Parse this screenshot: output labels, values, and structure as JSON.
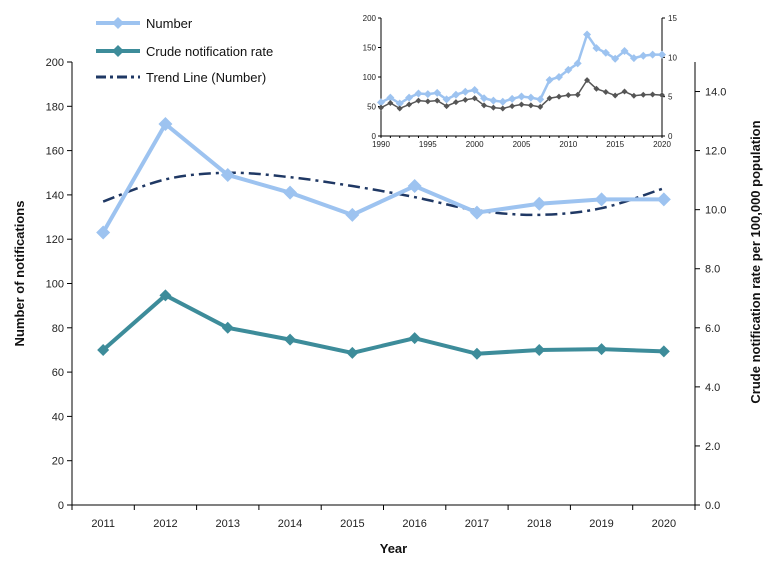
{
  "chart_data": [
    {
      "type": "line",
      "title": "",
      "xlabel": "Year",
      "ylabel": "Number of notifications",
      "y2label": "Crude notification rate per 100,000 population",
      "categories": [
        "2011",
        "2012",
        "2013",
        "2014",
        "2015",
        "2016",
        "2017",
        "2018",
        "2019",
        "2020"
      ],
      "ylim": [
        0,
        200
      ],
      "y_ticks": [
        "0",
        "20",
        "40",
        "60",
        "80",
        "100",
        "120",
        "140",
        "160",
        "180",
        "200"
      ],
      "y2lim": [
        0,
        15
      ],
      "y2_ticks": [
        "0.0",
        "2.0",
        "4.0",
        "6.0",
        "8.0",
        "10.0",
        "12.0",
        "14.0"
      ],
      "grid": false,
      "legend_position": "top-left",
      "series": [
        {
          "name": "Number",
          "axis": "left",
          "color": "#9dc3f0",
          "values": [
            123,
            172,
            149,
            141,
            131,
            144,
            132,
            136,
            138,
            138
          ]
        },
        {
          "name": "Crude notification rate",
          "axis": "right",
          "color": "#3d8c9a",
          "values": [
            5.25,
            7.1,
            6.0,
            5.6,
            5.15,
            5.65,
            5.12,
            5.25,
            5.28,
            5.2
          ]
        },
        {
          "name": "Trend Line (Number)",
          "axis": "left",
          "color": "#1f3864",
          "style": "dash-dot",
          "values": [
            137,
            147,
            150,
            148,
            144,
            139,
            133,
            131,
            134,
            143
          ]
        }
      ]
    },
    {
      "type": "line",
      "title": "",
      "x_ticks": [
        "1990",
        "1995",
        "2000",
        "2005",
        "2010",
        "2015",
        "2020"
      ],
      "ylim": [
        0,
        200
      ],
      "y_ticks": [
        "0",
        "50",
        "100",
        "150",
        "200"
      ],
      "y2lim": [
        0,
        15
      ],
      "y2_ticks": [
        "0",
        "5",
        "10",
        "15"
      ],
      "x": [
        1990,
        1991,
        1992,
        1993,
        1994,
        1995,
        1996,
        1997,
        1998,
        1999,
        2000,
        2001,
        2002,
        2003,
        2004,
        2005,
        2006,
        2007,
        2008,
        2009,
        2010,
        2011,
        2012,
        2013,
        2014,
        2015,
        2016,
        2017,
        2018,
        2019,
        2020
      ],
      "series": [
        {
          "name": "Number",
          "axis": "left",
          "color": "#9dc3f0",
          "values": [
            57,
            65,
            55,
            65,
            72,
            71,
            73,
            62,
            70,
            75,
            78,
            64,
            60,
            58,
            63,
            67,
            65,
            62,
            95,
            100,
            112,
            123,
            172,
            149,
            141,
            131,
            144,
            132,
            136,
            138,
            138
          ]
        },
        {
          "name": "Crude notification rate",
          "axis": "right",
          "color": "#555555",
          "values": [
            3.6,
            4.2,
            3.5,
            4.0,
            4.5,
            4.4,
            4.5,
            3.8,
            4.3,
            4.6,
            4.8,
            3.9,
            3.6,
            3.5,
            3.8,
            4.0,
            3.9,
            3.7,
            4.8,
            5.0,
            5.2,
            5.25,
            7.1,
            6.0,
            5.6,
            5.15,
            5.65,
            5.12,
            5.25,
            5.28,
            5.2
          ]
        }
      ]
    }
  ]
}
